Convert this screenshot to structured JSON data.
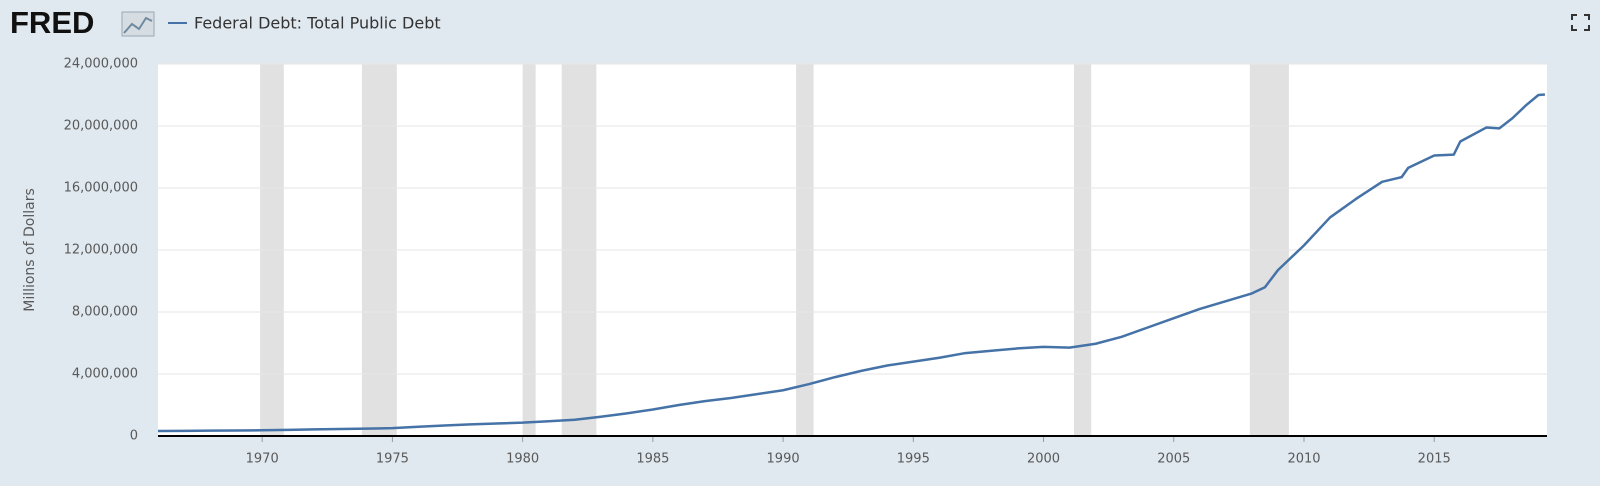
{
  "header": {
    "logo": "FRED"
  },
  "chart_data": {
    "type": "line",
    "y_label": "Millions of Dollars",
    "x": [
      1966,
      1967,
      1968,
      1969,
      1970,
      1971,
      1972,
      1973,
      1974,
      1975,
      1976,
      1977,
      1978,
      1979,
      1980,
      1981,
      1982,
      1983,
      1984,
      1985,
      1986,
      1987,
      1988,
      1989,
      1990,
      1991,
      1992,
      1993,
      1994,
      1995,
      1996,
      1997,
      1998,
      1999,
      2000,
      2001,
      2002,
      2003,
      2004,
      2005,
      2006,
      2007,
      2008,
      2008.5,
      2009,
      2010,
      2011,
      2012,
      2013,
      2013.75,
      2014,
      2015,
      2015.75,
      2016,
      2017,
      2017.5,
      2018,
      2018.5,
      2019,
      2019.25
    ],
    "series": [
      {
        "name": "Federal Debt: Total Public Debt",
        "color": "#4572a7",
        "values": [
          320000,
          330000,
          345000,
          355000,
          370000,
          395000,
          425000,
          455000,
          475000,
          510000,
          600000,
          680000,
          750000,
          810000,
          860000,
          950000,
          1050000,
          1240000,
          1460000,
          1710000,
          2000000,
          2250000,
          2450000,
          2700000,
          2950000,
          3350000,
          3800000,
          4200000,
          4550000,
          4800000,
          5050000,
          5350000,
          5500000,
          5650000,
          5750000,
          5700000,
          5950000,
          6400000,
          7000000,
          7600000,
          8200000,
          8700000,
          9200000,
          9600000,
          10700000,
          12300000,
          14100000,
          15300000,
          16400000,
          16700000,
          17300000,
          18100000,
          18150000,
          19000000,
          19900000,
          19850000,
          20500000,
          21300000,
          22000000,
          22030000
        ]
      }
    ],
    "recessions": [
      [
        1969.92,
        1970.83
      ],
      [
        1973.83,
        1975.17
      ],
      [
        1980.0,
        1980.5
      ],
      [
        1981.5,
        1982.83
      ],
      [
        1990.5,
        1991.17
      ],
      [
        2001.17,
        2001.83
      ],
      [
        2007.92,
        2009.42
      ]
    ],
    "recession_color": "#e1e1e1",
    "xlim": [
      1966,
      2019.33
    ],
    "xticks": [
      1970,
      1975,
      1980,
      1985,
      1990,
      1995,
      2000,
      2005,
      2010,
      2015
    ],
    "ylim": [
      0,
      24000000
    ],
    "yticks": [
      0,
      {
        "value": 4000000,
        "label": "4,000,000"
      },
      {
        "value": 8000000,
        "label": "8,000,000"
      },
      {
        "value": 12000000,
        "label": "12,000,000"
      },
      {
        "value": 16000000,
        "label": "16,000,000"
      },
      {
        "value": 20000000,
        "label": "20,000,000"
      },
      {
        "value": 24000000,
        "label": "24,000,000"
      }
    ],
    "grid": true
  }
}
